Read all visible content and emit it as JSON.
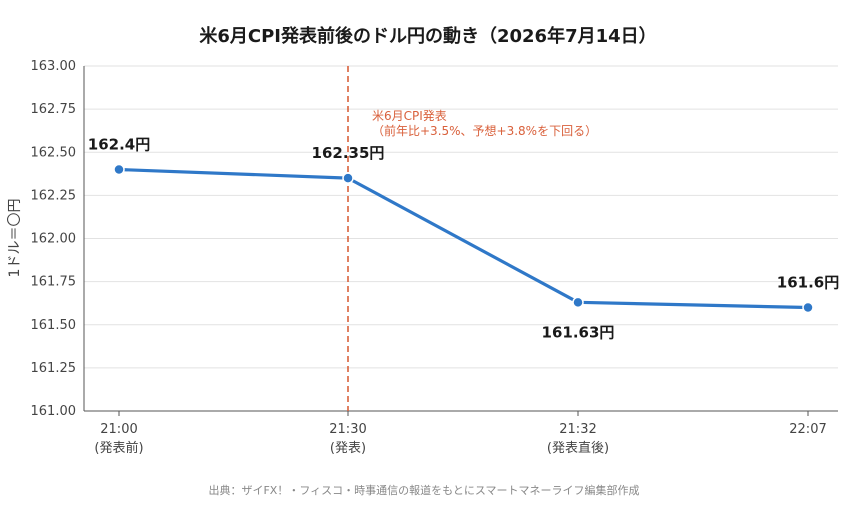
{
  "chart_data": {
    "type": "line",
    "title": "米6月CPI発表前後のドル円の動き（2026年7月14日）",
    "ylabel": "1ドル＝〇円",
    "xlabel": "",
    "ylim": [
      161.0,
      163.0
    ],
    "yticks": [
      "161.00",
      "161.25",
      "161.50",
      "161.75",
      "162.00",
      "162.25",
      "162.50",
      "162.75",
      "163.00"
    ],
    "grid": true,
    "categories": [
      {
        "time": "21:00",
        "note": "(発表前)"
      },
      {
        "time": "21:30",
        "note": "(発表)"
      },
      {
        "time": "21:32",
        "note": "(発表直後)"
      },
      {
        "time": "22:07",
        "note": ""
      }
    ],
    "series": [
      {
        "values": [
          162.4,
          162.35,
          161.63,
          161.6
        ],
        "labels": [
          "162.4円",
          "162.35円",
          "161.63円",
          "161.6円"
        ],
        "color": "#2f78c8"
      }
    ],
    "annotation": {
      "at_category": 1,
      "line1": "米6月CPI発表",
      "line2": "（前年比+3.5%、予想+3.8%を下回る）",
      "color": "#d9603b"
    },
    "source": "出典：ザイFX！・フィスコ・時事通信の報道をもとにスマートマネーライフ編集部作成"
  }
}
